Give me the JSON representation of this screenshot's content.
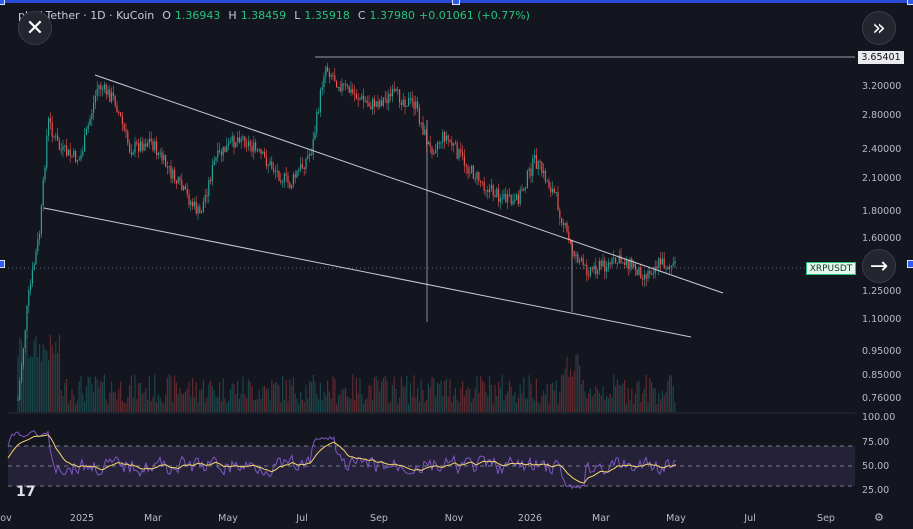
{
  "header": {
    "symbol": "ple / Tether · 1D · KuCoin",
    "open_label": "O",
    "open": "1.36943",
    "high_label": "H",
    "high": "1.38459",
    "low_label": "L",
    "low": "1.35918",
    "close_label": "C",
    "close": "1.37980",
    "change": "+0.01061 (+0.77%)"
  },
  "price_axis": {
    "labels": [
      "3.20000",
      "2.80000",
      "2.40000",
      "2.10000",
      "1.80000",
      "1.60000",
      "1.25000",
      "1.10000",
      "0.95000",
      "0.85000",
      "0.76000"
    ],
    "top_tag": "3.65401",
    "symbol_tag": "XRPUSDT"
  },
  "rsi_axis": {
    "labels": [
      "100.00",
      "75.00",
      "50.00",
      "25.00"
    ]
  },
  "time_axis": {
    "labels": [
      "ov",
      "2025",
      "Mar",
      "May",
      "Jul",
      "Sep",
      "Nov",
      "2026",
      "Mar",
      "May",
      "Jul",
      "Sep"
    ]
  },
  "buttons": {
    "close_icon": "✕",
    "expand_icon": "»",
    "next_icon": "→"
  },
  "colors": {
    "up": "#26a69a",
    "down": "#ef5350",
    "rsi": "#7e57c2",
    "rsi_ma": "#f5d76e",
    "accent": "#2f5cf0"
  },
  "chart_data": {
    "type": "candlestick",
    "symbol": "XRPUSDT",
    "timeframe": "1D",
    "exchange": "KuCoin",
    "last_ohlc": {
      "open": 1.36943,
      "high": 1.38459,
      "low": 1.35918,
      "close": 1.3798
    },
    "scale": "log",
    "approx_close_path": [
      {
        "t": "2024-11",
        "v": 0.55
      },
      {
        "t": "2024-12",
        "v": 2.4
      },
      {
        "t": "2025-01",
        "v": 3.2
      },
      {
        "t": "2025-03",
        "v": 2.3
      },
      {
        "t": "2025-05",
        "v": 2.2
      },
      {
        "t": "2025-07",
        "v": 3.5
      },
      {
        "t": "2025-09",
        "v": 2.9
      },
      {
        "t": "2025-11",
        "v": 2.3
      },
      {
        "t": "2026-01",
        "v": 2.0
      },
      {
        "t": "2026-02",
        "v": 1.4
      },
      {
        "t": "2026-04",
        "v": 1.38
      }
    ],
    "rsi_levels": [
      25,
      50,
      75,
      100
    ]
  }
}
